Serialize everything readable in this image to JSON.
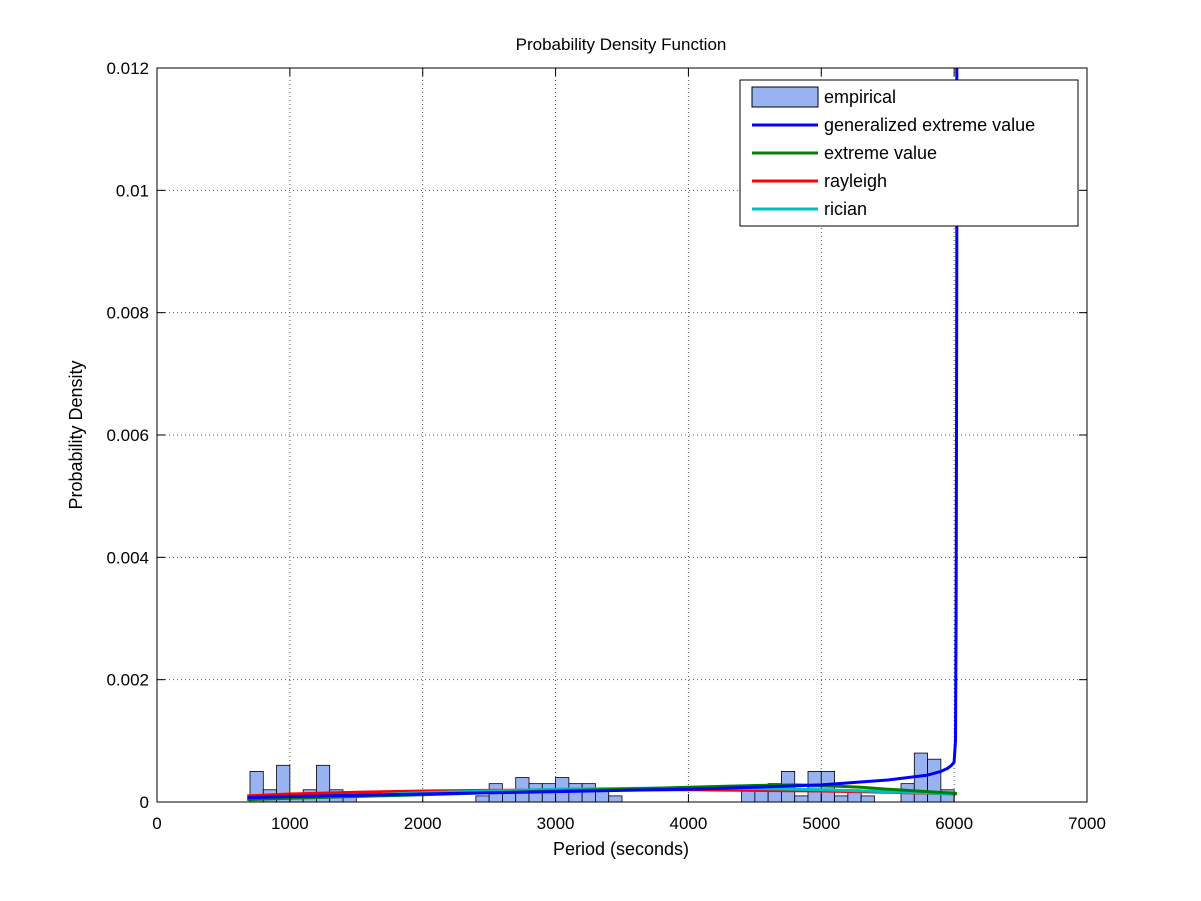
{
  "chart_data": {
    "type": "bar",
    "title": "Probability Density Function",
    "xlabel": "Period (seconds)",
    "ylabel": "Probability Density",
    "xlim": [
      0,
      7000
    ],
    "ylim": [
      0,
      0.012
    ],
    "xticks": [
      0,
      1000,
      2000,
      3000,
      4000,
      5000,
      6000,
      7000
    ],
    "xtick_labels": [
      "0",
      "1000",
      "2000",
      "3000",
      "4000",
      "5000",
      "6000",
      "7000"
    ],
    "yticks": [
      0,
      0.002,
      0.004,
      0.006,
      0.008,
      0.01,
      0.012
    ],
    "ytick_labels": [
      "0",
      "0.002",
      "0.004",
      "0.006",
      "0.008",
      "0.01",
      "0.012"
    ],
    "grid": true,
    "legend_position": "top-right",
    "colors": {
      "bar_fill": "#99b3f2",
      "bar_edge": "#000000",
      "gev": "#0000ff",
      "ev": "#008000",
      "rayleigh": "#ff0000",
      "rician": "#00bfbf",
      "grid": "#555555"
    },
    "histogram": {
      "name": "empirical",
      "bin_width": 100,
      "bins": [
        {
          "x": 750,
          "y": 0.0005
        },
        {
          "x": 850,
          "y": 0.0002
        },
        {
          "x": 950,
          "y": 0.0006
        },
        {
          "x": 1050,
          "y": 0.0001
        },
        {
          "x": 1150,
          "y": 0.0002
        },
        {
          "x": 1250,
          "y": 0.0006
        },
        {
          "x": 1350,
          "y": 0.0002
        },
        {
          "x": 1450,
          "y": 0.0001
        },
        {
          "x": 2450,
          "y": 0.0001
        },
        {
          "x": 2550,
          "y": 0.0003
        },
        {
          "x": 2650,
          "y": 0.0002
        },
        {
          "x": 2750,
          "y": 0.0004
        },
        {
          "x": 2850,
          "y": 0.0003
        },
        {
          "x": 2950,
          "y": 0.0003
        },
        {
          "x": 3050,
          "y": 0.0004
        },
        {
          "x": 3150,
          "y": 0.0003
        },
        {
          "x": 3250,
          "y": 0.0003
        },
        {
          "x": 3350,
          "y": 0.0002
        },
        {
          "x": 3450,
          "y": 0.0001
        },
        {
          "x": 4450,
          "y": 0.0002
        },
        {
          "x": 4550,
          "y": 0.0002
        },
        {
          "x": 4650,
          "y": 0.0003
        },
        {
          "x": 4750,
          "y": 0.0005
        },
        {
          "x": 4850,
          "y": 0.0001
        },
        {
          "x": 4950,
          "y": 0.0005
        },
        {
          "x": 5050,
          "y": 0.0005
        },
        {
          "x": 5150,
          "y": 0.0001
        },
        {
          "x": 5250,
          "y": 0.0002
        },
        {
          "x": 5350,
          "y": 0.0001
        },
        {
          "x": 5650,
          "y": 0.0003
        },
        {
          "x": 5750,
          "y": 0.0008
        },
        {
          "x": 5850,
          "y": 0.0007
        },
        {
          "x": 5950,
          "y": 0.0002
        }
      ]
    },
    "series": [
      {
        "name": "generalized extreme value",
        "color": "#0000ff",
        "x": [
          680,
          1000,
          1500,
          2000,
          2500,
          3000,
          3500,
          4000,
          4500,
          5000,
          5500,
          5800,
          5900,
          5950,
          5980,
          6000,
          6010,
          6015,
          6018,
          6020,
          6020
        ],
        "y": [
          7e-05,
          9e-05,
          0.00011,
          0.00013,
          0.00015,
          0.00017,
          0.00019,
          0.00021,
          0.00024,
          0.00028,
          0.00036,
          0.00044,
          0.0005,
          0.00055,
          0.0006,
          0.00065,
          0.001,
          0.003,
          0.006,
          0.009,
          0.012
        ]
      },
      {
        "name": "extreme value",
        "color": "#008000",
        "x": [
          680,
          1000,
          1500,
          2000,
          2500,
          3000,
          3500,
          4000,
          4500,
          4800,
          5000,
          5300,
          5500,
          5800,
          6020
        ],
        "y": [
          4e-05,
          6e-05,
          9e-05,
          0.00012,
          0.00015,
          0.00018,
          0.00021,
          0.00024,
          0.00027,
          0.00028,
          0.00027,
          0.00024,
          0.00021,
          0.00017,
          0.00014
        ]
      },
      {
        "name": "rayleigh",
        "color": "#ff0000",
        "x": [
          680,
          1000,
          1500,
          2000,
          2500,
          3000,
          3500,
          4000,
          4500,
          5000,
          5500,
          6020
        ],
        "y": [
          0.0001,
          0.00013,
          0.00016,
          0.00018,
          0.00019,
          0.0002,
          0.0002,
          0.0002,
          0.00019,
          0.00018,
          0.00016,
          0.00013
        ]
      },
      {
        "name": "rician",
        "color": "#00bfbf",
        "x": [
          680,
          1000,
          1500,
          2000,
          2500,
          3000,
          3500,
          4000,
          4500,
          5000,
          5500,
          6020
        ],
        "y": [
          5e-05,
          7e-05,
          0.00011,
          0.00015,
          0.00018,
          0.00021,
          0.00022,
          0.00023,
          0.00022,
          0.0002,
          0.00017,
          0.00013
        ]
      }
    ]
  }
}
